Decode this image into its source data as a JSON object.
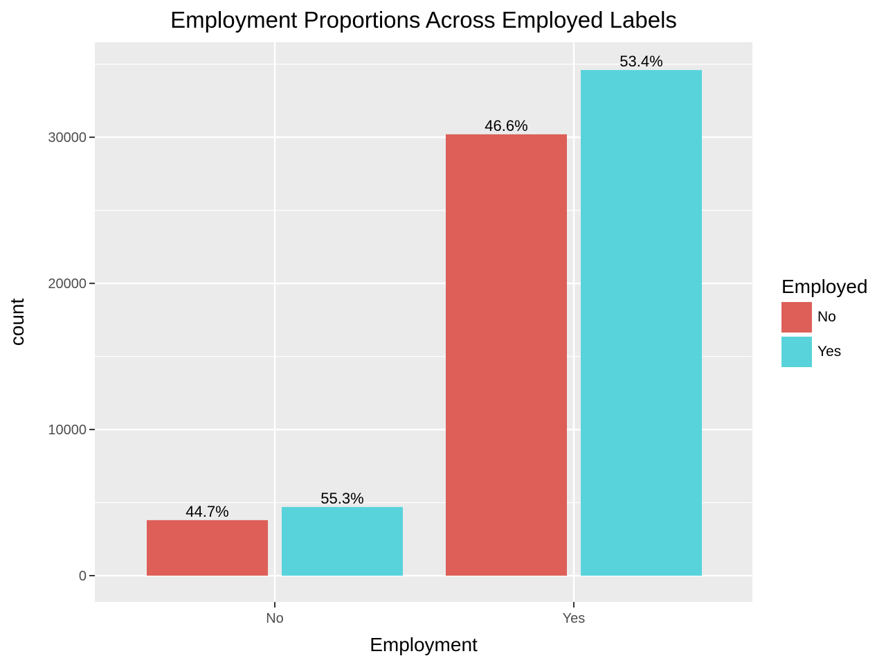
{
  "chart_data": {
    "type": "bar",
    "title": "Employment Proportions Across Employed Labels",
    "xlabel": "Employment",
    "ylabel": "count",
    "categories": [
      "No",
      "Yes"
    ],
    "series": [
      {
        "name": "No",
        "color": "#dd5f58",
        "values": [
          3800,
          30200
        ],
        "labels": [
          "44.7%",
          "46.6%"
        ]
      },
      {
        "name": "Yes",
        "color": "#58d3db",
        "values": [
          4700,
          34600
        ],
        "labels": [
          "55.3%",
          "53.4%"
        ]
      }
    ],
    "ylim": [
      -1800,
      36500
    ],
    "yticks": [
      0,
      10000,
      20000,
      30000
    ],
    "ytick_labels": [
      "0",
      "10000",
      "20000",
      "30000"
    ],
    "grid": true,
    "legend": {
      "title": "Employed",
      "placement": "right",
      "entries": [
        "No",
        "Yes"
      ]
    },
    "panel_background": "#ebebeb",
    "grid_color": "#ffffff"
  }
}
